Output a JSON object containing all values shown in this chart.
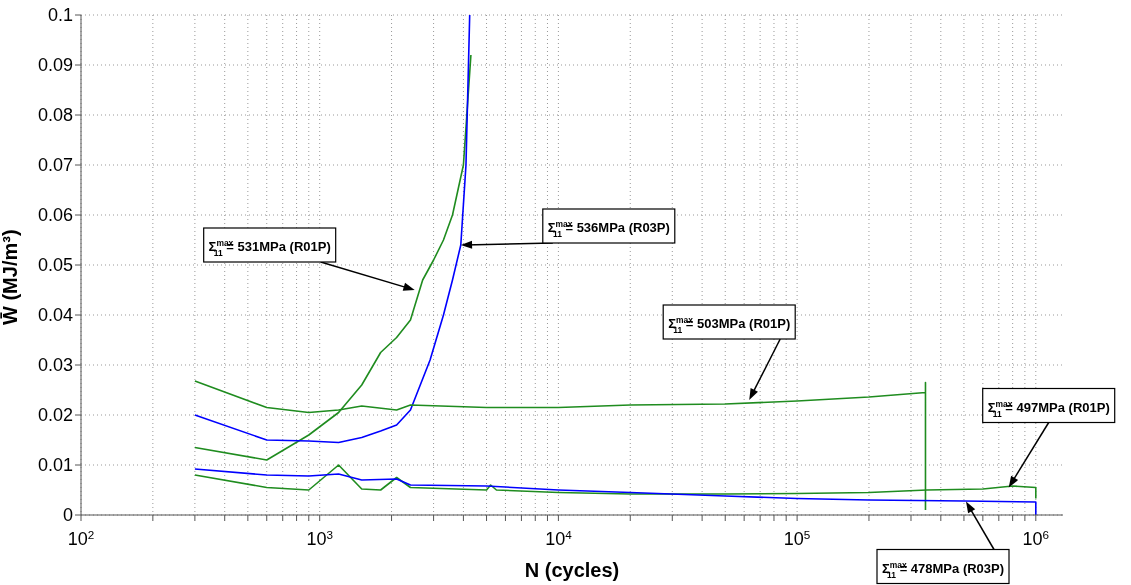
{
  "chart_data": {
    "type": "line",
    "xlabel": "N (cycles)",
    "ylabel": "W̄ (MJ/m³)",
    "log": "x",
    "grid": true,
    "xlim": [
      100,
      1300000
    ],
    "xticks": [
      {
        "value": 100,
        "label": "10$^{2}$"
      },
      {
        "value": 200,
        "label": null
      },
      {
        "value": 300,
        "label": null
      },
      {
        "value": 400,
        "label": null
      },
      {
        "value": 500,
        "label": null
      },
      {
        "value": 600,
        "label": null
      },
      {
        "value": 700,
        "label": null
      },
      {
        "value": 800,
        "label": null
      },
      {
        "value": 900,
        "label": null
      },
      {
        "value": 1000,
        "label": "10$^{3}$"
      },
      {
        "value": 2000,
        "label": null
      },
      {
        "value": 3000,
        "label": null
      },
      {
        "value": 4000,
        "label": null
      },
      {
        "value": 5000,
        "label": null
      },
      {
        "value": 6000,
        "label": null
      },
      {
        "value": 7000,
        "label": null
      },
      {
        "value": 8000,
        "label": null
      },
      {
        "value": 9000,
        "label": null
      },
      {
        "value": 10000,
        "label": "10$^{4}$"
      },
      {
        "value": 20000,
        "label": null
      },
      {
        "value": 30000,
        "label": null
      },
      {
        "value": 40000,
        "label": null
      },
      {
        "value": 50000,
        "label": null
      },
      {
        "value": 60000,
        "label": null
      },
      {
        "value": 70000,
        "label": null
      },
      {
        "value": 80000,
        "label": null
      },
      {
        "value": 90000,
        "label": null
      },
      {
        "value": 100000,
        "label": "10$^{5}$"
      },
      {
        "value": 200000,
        "label": null
      },
      {
        "value": 300000,
        "label": null
      },
      {
        "value": 400000,
        "label": null
      },
      {
        "value": 500000,
        "label": null
      },
      {
        "value": 600000,
        "label": null
      },
      {
        "value": 700000,
        "label": null
      },
      {
        "value": 800000,
        "label": null
      },
      {
        "value": 900000,
        "label": null
      },
      {
        "value": 1000000,
        "label": "10$^{6}$"
      }
    ],
    "ylim": [
      0,
      0.1
    ],
    "yticks": [
      0,
      0.01,
      0.02,
      0.03,
      0.04,
      0.05,
      0.06,
      0.07,
      0.08,
      0.09,
      0.1
    ],
    "series": [
      {
        "color": "#1f8c1f",
        "x": [
          300,
          600,
          900,
          1200,
          1500,
          1800,
          2100,
          2400,
          2700,
          3000,
          3300,
          3600,
          4000,
          4300
        ],
        "values": [
          0.0135,
          0.011,
          0.016,
          0.0205,
          0.026,
          0.0325,
          0.0355,
          0.039,
          0.047,
          0.051,
          0.055,
          0.06,
          0.07,
          0.092
        ]
      },
      {
        "color": "#0000ff",
        "x": [
          300,
          600,
          900,
          1200,
          1500,
          1800,
          2100,
          2400,
          2900,
          3300,
          3600,
          3900,
          4100,
          4250
        ],
        "values": [
          0.02,
          0.015,
          0.0148,
          0.0145,
          0.0155,
          0.0168,
          0.018,
          0.021,
          0.031,
          0.04,
          0.047,
          0.054,
          0.07,
          0.1
        ]
      },
      {
        "color": "#1f8c1f",
        "x": [
          300,
          600,
          900,
          1200,
          1500,
          2100,
          2400,
          5000,
          10000,
          20000,
          50000,
          100000,
          200000,
          345000,
          345000,
          345000
        ],
        "values": [
          0.0268,
          0.0215,
          0.0205,
          0.021,
          0.0218,
          0.021,
          0.022,
          0.0215,
          0.0215,
          0.022,
          0.0222,
          0.0228,
          0.0236,
          0.0245,
          0.0265,
          0.001
        ]
      },
      {
        "color": "#1f8c1f",
        "x": [
          300,
          600,
          900,
          1200,
          1500,
          1800,
          2100,
          2400,
          5000,
          5200,
          5500,
          10000,
          20000,
          50000,
          100000,
          200000,
          350000,
          600000,
          800000,
          1000000,
          1000000
        ],
        "values": [
          0.008,
          0.0055,
          0.005,
          0.01,
          0.0052,
          0.005,
          0.0075,
          0.0055,
          0.005,
          0.006,
          0.005,
          0.0045,
          0.0042,
          0.0042,
          0.0043,
          0.0045,
          0.005,
          0.0052,
          0.0058,
          0.0055,
          0.0033
        ]
      },
      {
        "color": "#0000ff",
        "x": [
          300,
          600,
          900,
          1200,
          1500,
          2100,
          2400,
          5000,
          10000,
          20000,
          50000,
          100000,
          200000,
          500000,
          1000000,
          1000000
        ],
        "values": [
          0.0092,
          0.008,
          0.0078,
          0.0082,
          0.007,
          0.0072,
          0.006,
          0.0058,
          0.005,
          0.0045,
          0.0038,
          0.0033,
          0.003,
          0.0028,
          0.0026,
          0
        ]
      }
    ],
    "annotations": [
      {
        "text": "Σ$^{max}$$_{11}$ = 531MPa (R01P)",
        "x": 2500,
        "y": 0.045
      },
      {
        "text": "Σ$^{max}$$_{11}$ = 536MPa (R03P)",
        "x": 3900,
        "y": 0.054
      },
      {
        "text": "Σ$^{max}$$_{11}$ = 503MPa (R01P)",
        "x": 63000,
        "y": 0.023
      },
      {
        "text": "Σ$^{max}$$_{11}$ = 497MPa (R01P)",
        "x": 770000,
        "y": 0.0055
      },
      {
        "text": "Σ$^{max}$$_{11}$ = 478MPa (R03P)",
        "x": 510000,
        "y": 0.0027
      }
    ]
  }
}
